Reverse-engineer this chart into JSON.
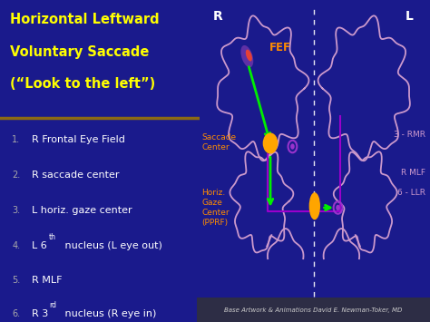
{
  "bg_left_color": "#1a1a8c",
  "bg_right_color": "#4a4a4a",
  "title_text_lines": [
    "Horizontal Leftward",
    "Voluntary Saccade",
    "(“Look to the left”)"
  ],
  "title_color": "#FFFF00",
  "title_fontsize": 10.5,
  "separator_color": "#8B6914",
  "item_color": "#FFFFFF",
  "item_num_color": "#AAAAAA",
  "item_fontsize": 8.0,
  "brain_outline_color": "#CC99CC",
  "fef_label": "FEF",
  "fef_label_color": "#FF8C00",
  "saccade_label": "Saccade\nCenter",
  "saccade_label_color": "#FF8C00",
  "horiz_label": "Horiz.\nGaze\nCenter\n(PPRF)",
  "horiz_label_color": "#FF8C00",
  "RL_color": "#FFFFFF",
  "rmr_label": "3 - RMR",
  "mlf_label": "R MLF",
  "llr_label": "6 - LLR",
  "right_labels_color": "#CC99CC",
  "arrow_green": "#00EE00",
  "arrow_purple": "#9900CC",
  "footer_text": "Base Artwork & Animations David E. Newman-Toker, MD",
  "footer_color": "#CCCCCC",
  "footer_fontsize": 5.0
}
